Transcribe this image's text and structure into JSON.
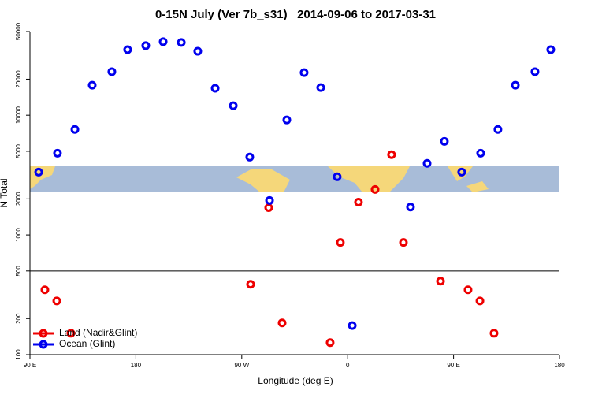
{
  "chart_data": {
    "type": "scatter",
    "title": "0-15N July (Ver 7b_s31)   2014-09-06 to 2017-03-31",
    "x_label": "Longitude (deg E)",
    "y_label": "N Total",
    "xlim": [
      90,
      540
    ],
    "xticks": [
      {
        "value": 90,
        "label": "90 E"
      },
      {
        "value": 180,
        "label": "180"
      },
      {
        "value": 270,
        "label": "90 W"
      },
      {
        "value": 360,
        "label": "0"
      },
      {
        "value": 450,
        "label": "90 E"
      },
      {
        "value": 540,
        "label": "180"
      }
    ],
    "ylim": [
      100,
      50000
    ],
    "log_y": true,
    "yticks": [
      100,
      200,
      500,
      1000,
      2000,
      5000,
      10000,
      20000,
      50000
    ],
    "hline": 500,
    "legend": "bottom-left",
    "series": [
      {
        "name": "Land (Nadir&Glint)",
        "color": "#ee0000",
        "x": [
          102.7,
          112.8,
          124.8,
          277.5,
          292.9,
          304.3,
          345.1,
          353.8,
          369.2,
          383.3,
          397.3,
          407.4,
          438.9,
          462.3,
          472.4,
          484.4
        ],
        "values": [
          348,
          281,
          151,
          387,
          1690,
          184,
          126,
          865,
          1880,
          2400,
          4680,
          865,
          411,
          348,
          281,
          151
        ]
      },
      {
        "name": "Ocean (Glint)",
        "color": "#0000ee",
        "x": [
          97.4,
          113.4,
          128.2,
          142.9,
          159.6,
          173,
          188.4,
          203.2,
          218.6,
          232.6,
          247.4,
          262.8,
          276.8,
          293.6,
          308.3,
          323,
          337.1,
          351.1,
          363.9,
          413.4,
          427.5,
          442.2,
          456.9,
          473,
          487.7,
          502.5,
          519.2,
          532.6
        ],
        "values": [
          3350,
          4820,
          7600,
          17800,
          23100,
          35300,
          38100,
          41100,
          40500,
          34200,
          16800,
          12000,
          4470,
          1940,
          9130,
          22700,
          17000,
          3060,
          175,
          1710,
          3960,
          6050,
          3350,
          4820,
          7600,
          17800,
          23100,
          35300
        ]
      }
    ]
  }
}
